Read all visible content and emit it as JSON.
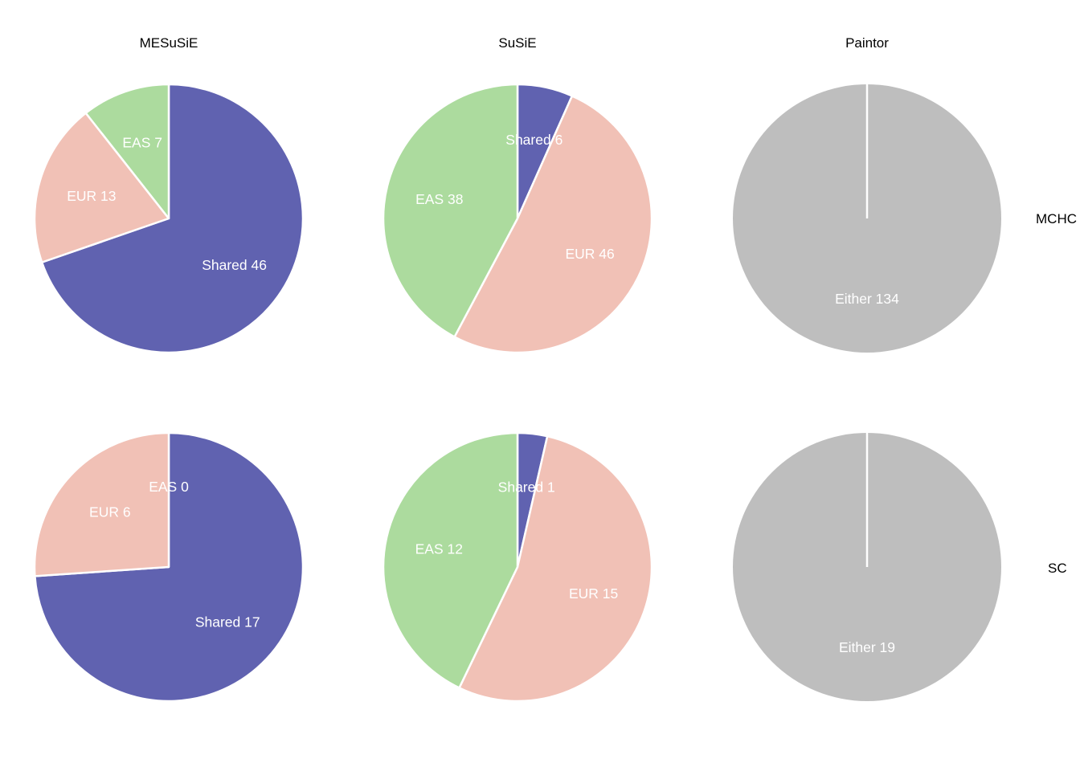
{
  "colors": {
    "Shared": "#6062B0",
    "EUR": "#F1C1B6",
    "EAS": "#ACDB9E",
    "Either": "#BEBEBE"
  },
  "chart_data": {
    "type": "pie",
    "columns": [
      "MESuSiE",
      "SuSiE",
      "Paintor"
    ],
    "rows": [
      "MCHC",
      "SC"
    ],
    "legend": "none",
    "panels": [
      {
        "method": "MESuSiE",
        "trait": "MCHC",
        "slices": [
          {
            "category": "Shared",
            "value": 46,
            "label": "Shared 46"
          },
          {
            "category": "EUR",
            "value": 13,
            "label": "EUR 13"
          },
          {
            "category": "EAS",
            "value": 7,
            "label": "EAS 7"
          }
        ]
      },
      {
        "method": "SuSiE",
        "trait": "MCHC",
        "slices": [
          {
            "category": "Shared",
            "value": 6,
            "label": "Shared 6"
          },
          {
            "category": "EUR",
            "value": 46,
            "label": "EUR 46"
          },
          {
            "category": "EAS",
            "value": 38,
            "label": "EAS 38"
          }
        ]
      },
      {
        "method": "Paintor",
        "trait": "MCHC",
        "slices": [
          {
            "category": "Either",
            "value": 134,
            "label": "Either 134"
          }
        ]
      },
      {
        "method": "MESuSiE",
        "trait": "SC",
        "slices": [
          {
            "category": "Shared",
            "value": 17,
            "label": "Shared 17"
          },
          {
            "category": "EUR",
            "value": 6,
            "label": "EUR 6"
          },
          {
            "category": "EAS",
            "value": 0,
            "label": "EAS 0"
          }
        ]
      },
      {
        "method": "SuSiE",
        "trait": "SC",
        "slices": [
          {
            "category": "Shared",
            "value": 1,
            "label": "Shared 1"
          },
          {
            "category": "EUR",
            "value": 15,
            "label": "EUR 15"
          },
          {
            "category": "EAS",
            "value": 12,
            "label": "EAS 12"
          }
        ]
      },
      {
        "method": "Paintor",
        "trait": "SC",
        "slices": [
          {
            "category": "Either",
            "value": 19,
            "label": "Either 19"
          }
        ]
      }
    ]
  }
}
